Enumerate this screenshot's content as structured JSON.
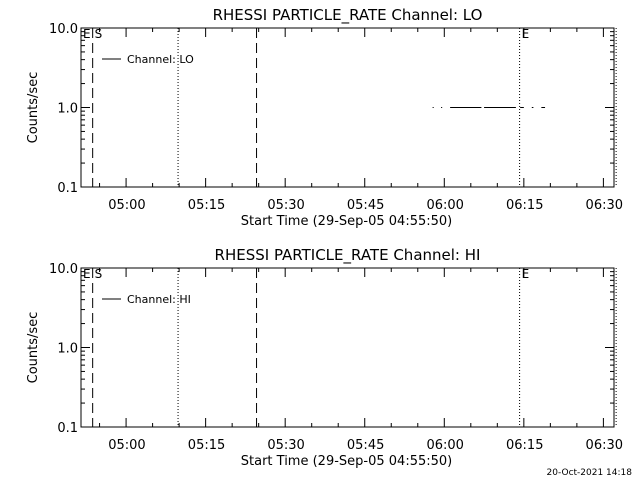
{
  "chart_data": [
    {
      "type": "line",
      "title": "RHESSI PARTICLE_RATE Channel: LO",
      "xlabel": "Start Time (29-Sep-05 04:55:50)",
      "ylabel": "Counts/sec",
      "yscale": "log",
      "ylim": [
        0.1,
        10.0
      ],
      "xlim_minutes_after_start": [
        -4.5,
        96.0
      ],
      "x_ticks": [
        {
          "label": "05:00",
          "minutes": 4.17
        },
        {
          "label": "05:15",
          "minutes": 19.17
        },
        {
          "label": "05:30",
          "minutes": 34.17
        },
        {
          "label": "05:45",
          "minutes": 49.17
        },
        {
          "label": "06:00",
          "minutes": 64.17
        },
        {
          "label": "06:15",
          "minutes": 79.17
        },
        {
          "label": "06:30",
          "minutes": 94.17
        }
      ],
      "y_ticks": [
        {
          "label": "0.1",
          "value": 0.1
        },
        {
          "label": "1.0",
          "value": 1.0
        },
        {
          "label": "10.0",
          "value": 10.0
        }
      ],
      "legend": "Channel: LO",
      "legend_position": "top-left",
      "series": [
        {
          "name": "Channel: LO",
          "segments": [
            {
              "x": [
                61.8,
                62.0
              ],
              "y": [
                1.0,
                1.0
              ]
            },
            {
              "x": [
                63.4,
                63.6
              ],
              "y": [
                1.0,
                1.0
              ]
            },
            {
              "x": [
                65.1,
                71.0
              ],
              "y": [
                1.0,
                1.0
              ]
            },
            {
              "x": [
                71.5,
                77.5
              ],
              "y": [
                1.0,
                1.0
              ]
            },
            {
              "x": [
                78.3,
                79.0
              ],
              "y": [
                1.0,
                1.0
              ]
            },
            {
              "x": [
                80.5,
                80.8
              ],
              "y": [
                1.0,
                1.0
              ]
            },
            {
              "x": [
                82.3,
                83.0
              ],
              "y": [
                1.0,
                1.0
              ]
            }
          ]
        }
      ],
      "markers": [
        {
          "label": "E",
          "minutes": -4.5,
          "style": "none"
        },
        {
          "label": "S",
          "minutes": -2.3,
          "style": "dashed"
        },
        {
          "label": "",
          "minutes": 13.8,
          "style": "dotted"
        },
        {
          "label": "",
          "minutes": 28.6,
          "style": "dashed"
        },
        {
          "label": "E",
          "minutes": 78.2,
          "style": "dotted"
        },
        {
          "label": "",
          "minutes": 96.4,
          "style": "dotted"
        }
      ]
    },
    {
      "type": "line",
      "title": "RHESSI PARTICLE_RATE Channel: HI",
      "xlabel": "Start Time (29-Sep-05 04:55:50)",
      "ylabel": "Counts/sec",
      "yscale": "log",
      "ylim": [
        0.1,
        10.0
      ],
      "xlim_minutes_after_start": [
        -4.5,
        96.0
      ],
      "x_ticks": [
        {
          "label": "05:00",
          "minutes": 4.17
        },
        {
          "label": "05:15",
          "minutes": 19.17
        },
        {
          "label": "05:30",
          "minutes": 34.17
        },
        {
          "label": "05:45",
          "minutes": 49.17
        },
        {
          "label": "06:00",
          "minutes": 64.17
        },
        {
          "label": "06:15",
          "minutes": 79.17
        },
        {
          "label": "06:30",
          "minutes": 94.17
        }
      ],
      "y_ticks": [
        {
          "label": "0.1",
          "value": 0.1
        },
        {
          "label": "1.0",
          "value": 1.0
        },
        {
          "label": "10.0",
          "value": 10.0
        }
      ],
      "legend": "Channel: HI",
      "legend_position": "top-left",
      "series": [
        {
          "name": "Channel: HI",
          "segments": []
        }
      ],
      "markers": [
        {
          "label": "E",
          "minutes": -4.5,
          "style": "none"
        },
        {
          "label": "S",
          "minutes": -2.3,
          "style": "dashed"
        },
        {
          "label": "",
          "minutes": 13.8,
          "style": "dotted"
        },
        {
          "label": "",
          "minutes": 28.6,
          "style": "dashed"
        },
        {
          "label": "E",
          "minutes": 78.2,
          "style": "dotted"
        },
        {
          "label": "",
          "minutes": 96.4,
          "style": "dotted"
        }
      ]
    }
  ],
  "footer": {
    "timestamp": "20-Oct-2021 14:18"
  }
}
